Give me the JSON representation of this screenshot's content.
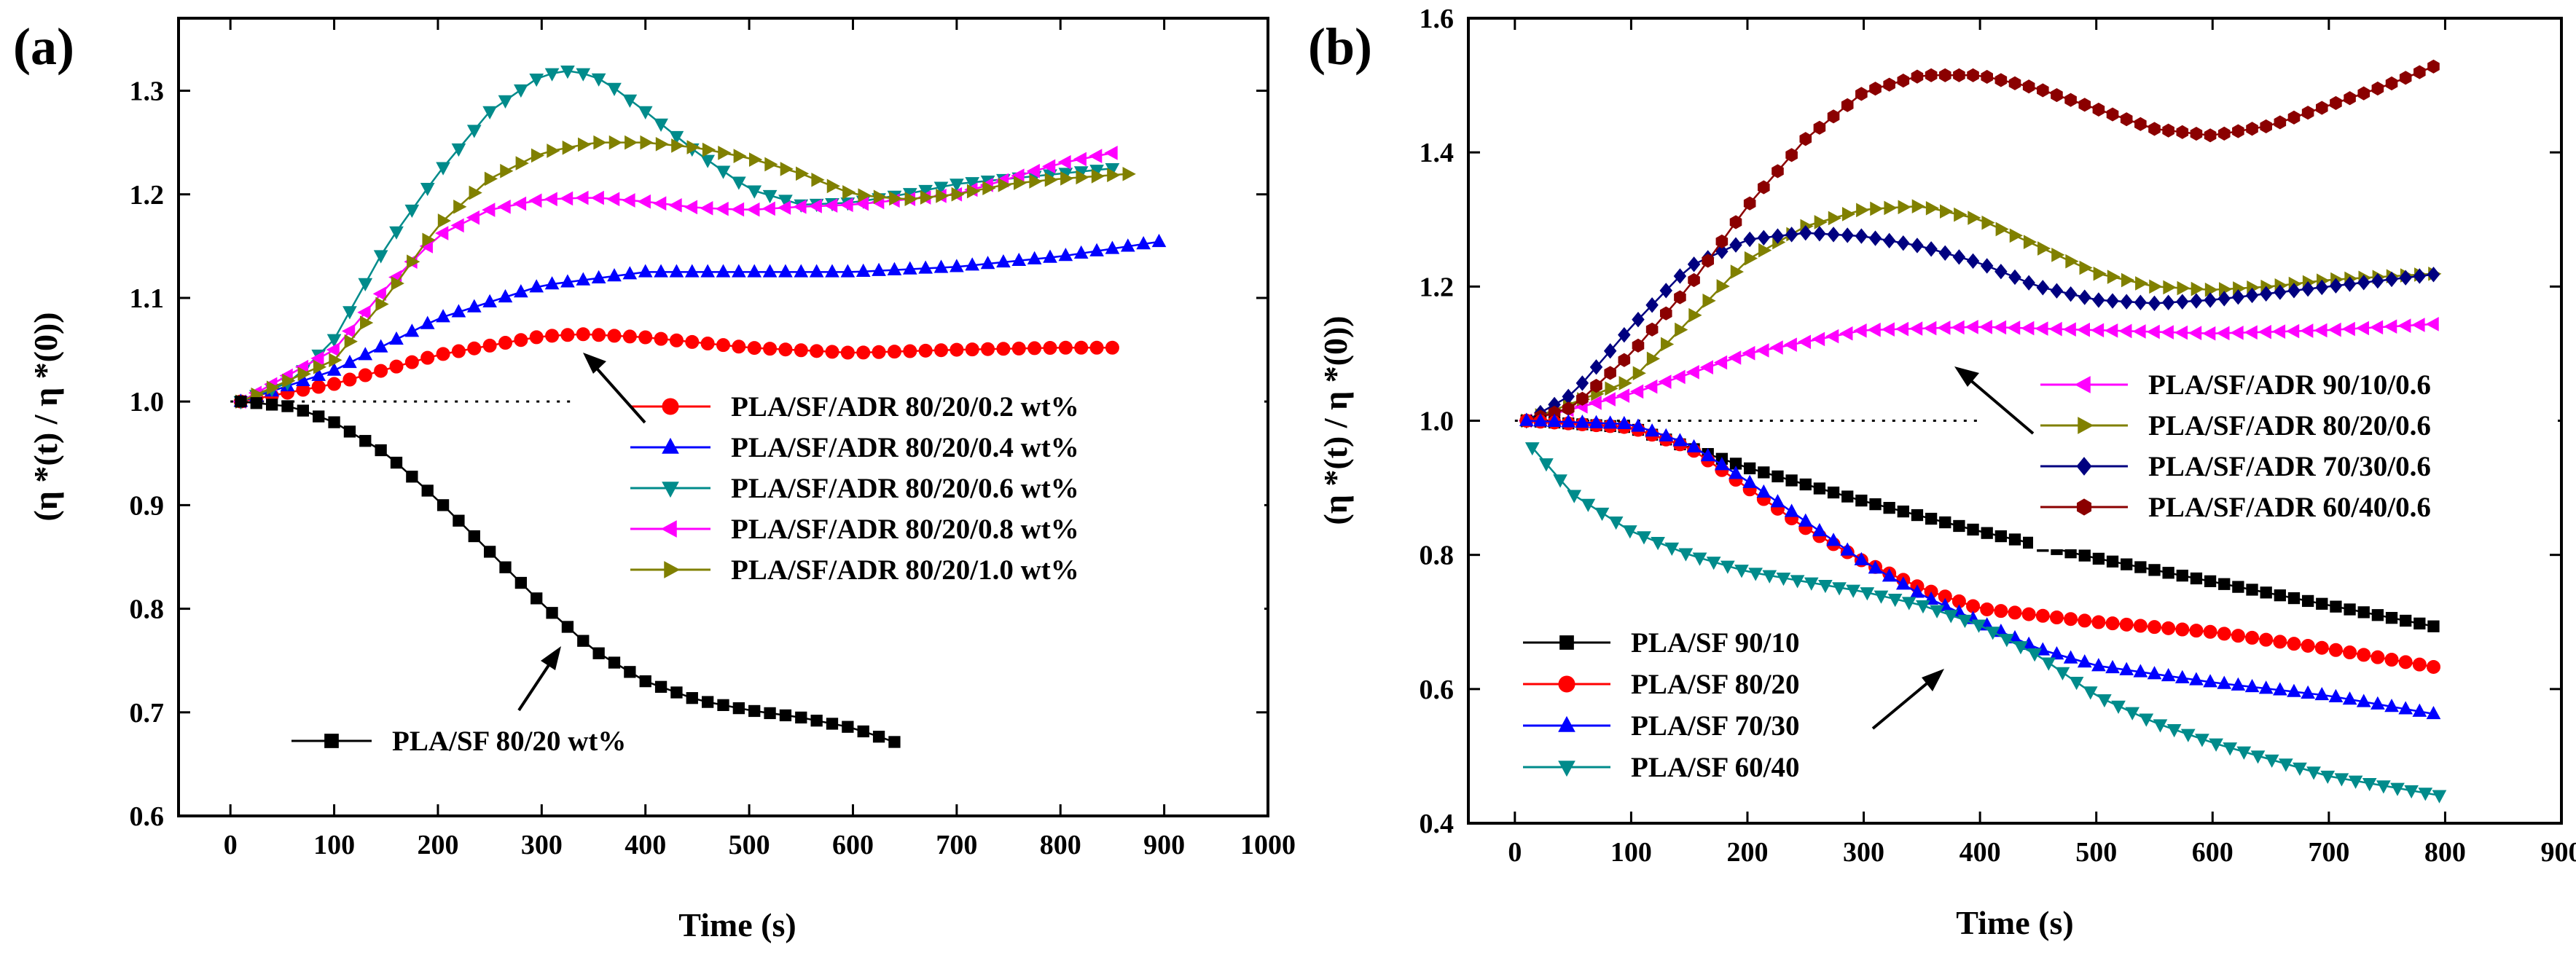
{
  "chart_data": [
    {
      "type": "scatter",
      "panel": "(a)",
      "xlabel": "Time (s)",
      "ylabel": "(η *(t) / η *(0))",
      "xlim": [
        -50,
        1000
      ],
      "ylim": [
        0.6,
        1.37
      ],
      "xticks": [
        "0",
        "100",
        "200",
        "300",
        "400",
        "500",
        "600",
        "700",
        "800",
        "900",
        "1000"
      ],
      "yticks": [
        "0.6",
        "0.7",
        "0.8",
        "0.9",
        "1.0",
        "1.1",
        "1.2",
        "1.3"
      ],
      "xtick_values": [
        0,
        100,
        200,
        300,
        400,
        500,
        600,
        700,
        800,
        900,
        1000
      ],
      "ytick_values": [
        0.6,
        0.7,
        0.8,
        0.9,
        1.0,
        1.1,
        1.2,
        1.3
      ],
      "reference_line": {
        "y": 1.0,
        "x": [
          0,
          330
        ]
      },
      "series": [
        {
          "name": "PLA/SF/ADR 80/20/0.2 wt%",
          "color": "#ff0000",
          "marker": "circle",
          "x_range": [
            10,
            860
          ],
          "x": [
            10,
            100,
            200,
            300,
            340,
            400,
            500,
            600,
            700,
            800,
            860
          ],
          "y": [
            1.0,
            1.017,
            1.045,
            1.063,
            1.065,
            1.062,
            1.052,
            1.047,
            1.05,
            1.052,
            1.052
          ]
        },
        {
          "name": "PLA/SF/ADR 80/20/0.4 wt%",
          "color": "#0000ff",
          "marker": "triangle-up",
          "x_range": [
            10,
            900
          ],
          "x": [
            10,
            100,
            200,
            300,
            400,
            500,
            600,
            700,
            800,
            900
          ],
          "y": [
            1.0,
            1.03,
            1.08,
            1.112,
            1.125,
            1.125,
            1.125,
            1.13,
            1.14,
            1.155
          ]
        },
        {
          "name": "PLA/SF/ADR 80/20/0.6 wt%",
          "color": "#008b8b",
          "marker": "triangle-down",
          "x_range": [
            10,
            850
          ],
          "x": [
            10,
            60,
            100,
            150,
            200,
            250,
            300,
            330,
            360,
            400,
            450,
            500,
            550,
            600,
            650,
            700,
            750,
            800,
            850
          ],
          "y": [
            1.0,
            1.02,
            1.06,
            1.15,
            1.22,
            1.28,
            1.315,
            1.32,
            1.31,
            1.28,
            1.24,
            1.205,
            1.19,
            1.192,
            1.2,
            1.21,
            1.215,
            1.22,
            1.225
          ]
        },
        {
          "name": "PLA/SF/ADR 80/20/0.8 wt%",
          "color": "#ff00ff",
          "marker": "triangle-left",
          "x_range": [
            10,
            850
          ],
          "x": [
            10,
            100,
            150,
            200,
            250,
            300,
            350,
            400,
            450,
            500,
            550,
            600,
            650,
            700,
            750,
            800,
            850
          ],
          "y": [
            1.0,
            1.05,
            1.11,
            1.16,
            1.185,
            1.195,
            1.197,
            1.193,
            1.187,
            1.185,
            1.188,
            1.19,
            1.195,
            1.2,
            1.215,
            1.23,
            1.24
          ]
        },
        {
          "name": "PLA/SF/ADR 80/20/1.0 wt%",
          "color": "#808000",
          "marker": "triangle-right",
          "x_range": [
            10,
            870
          ],
          "x": [
            10,
            100,
            150,
            200,
            250,
            300,
            350,
            400,
            450,
            500,
            550,
            600,
            650,
            700,
            750,
            800,
            870
          ],
          "y": [
            1.0,
            1.04,
            1.1,
            1.17,
            1.215,
            1.24,
            1.25,
            1.25,
            1.245,
            1.235,
            1.22,
            1.2,
            1.195,
            1.2,
            1.21,
            1.215,
            1.22
          ]
        },
        {
          "name": "PLA/SF 80/20 wt%",
          "color": "#000000",
          "marker": "square",
          "x_range": [
            10,
            650
          ],
          "x": [
            10,
            60,
            100,
            150,
            200,
            250,
            300,
            350,
            400,
            450,
            500,
            550,
            600,
            650
          ],
          "y": [
            1.0,
            0.995,
            0.98,
            0.95,
            0.905,
            0.855,
            0.805,
            0.76,
            0.73,
            0.712,
            0.702,
            0.695,
            0.685,
            0.668
          ]
        }
      ]
    },
    {
      "type": "scatter",
      "panel": "(b)",
      "xlabel": "Time (s)",
      "ylabel": "(η *(t) / η *(0))",
      "xlim": [
        -40,
        900
      ],
      "ylim": [
        0.4,
        1.6
      ],
      "xticks": [
        "0",
        "100",
        "200",
        "300",
        "400",
        "500",
        "600",
        "700",
        "800",
        "900"
      ],
      "yticks": [
        "0.4",
        "0.6",
        "0.8",
        "1.0",
        "1.2",
        "1.4",
        "1.6"
      ],
      "xtick_values": [
        0,
        100,
        200,
        300,
        400,
        500,
        600,
        700,
        800,
        900
      ],
      "ytick_values": [
        0.4,
        0.6,
        0.8,
        1.0,
        1.2,
        1.4,
        1.6
      ],
      "reference_line": {
        "y": 1.0,
        "x": [
          0,
          400
        ]
      },
      "series": [
        {
          "name": "PLA/SF/ADR 90/10/0.6",
          "color": "#ff00ff",
          "marker": "triangle-left",
          "x_range": [
            10,
            800
          ],
          "x": [
            10,
            100,
            200,
            300,
            400,
            500,
            600,
            700,
            800
          ],
          "y": [
            1.0,
            1.04,
            1.1,
            1.135,
            1.14,
            1.135,
            1.13,
            1.135,
            1.145
          ]
        },
        {
          "name": "PLA/SF/ADR 80/20/0.6",
          "color": "#808000",
          "marker": "triangle-right",
          "x_range": [
            10,
            800
          ],
          "x": [
            10,
            100,
            150,
            200,
            250,
            300,
            350,
            400,
            450,
            500,
            550,
            600,
            650,
            700,
            750,
            800
          ],
          "y": [
            1.0,
            1.06,
            1.15,
            1.24,
            1.29,
            1.315,
            1.32,
            1.3,
            1.26,
            1.22,
            1.2,
            1.195,
            1.2,
            1.21,
            1.215,
            1.22
          ]
        },
        {
          "name": "PLA/SF/ADR 70/30/0.6",
          "color": "#000080",
          "marker": "diamond",
          "x_range": [
            10,
            800
          ],
          "x": [
            10,
            50,
            100,
            150,
            200,
            250,
            300,
            350,
            400,
            450,
            500,
            550,
            600,
            650,
            700,
            750,
            800
          ],
          "y": [
            1.0,
            1.04,
            1.14,
            1.23,
            1.27,
            1.28,
            1.275,
            1.26,
            1.235,
            1.2,
            1.18,
            1.175,
            1.18,
            1.19,
            1.2,
            1.21,
            1.22
          ]
        },
        {
          "name": "PLA/SF/ADR 60/40/0.6",
          "color": "#8b0000",
          "marker": "hexagon",
          "x_range": [
            10,
            800
          ],
          "x": [
            10,
            50,
            100,
            150,
            200,
            250,
            300,
            350,
            400,
            450,
            500,
            550,
            600,
            650,
            700,
            750,
            800
          ],
          "y": [
            1.0,
            1.02,
            1.1,
            1.2,
            1.32,
            1.42,
            1.49,
            1.515,
            1.515,
            1.495,
            1.465,
            1.435,
            1.425,
            1.44,
            1.47,
            1.5,
            1.535
          ]
        },
        {
          "name": "PLA/SF 90/10",
          "color": "#000000",
          "marker": "square",
          "x_range": [
            10,
            800
          ],
          "x": [
            10,
            100,
            200,
            300,
            400,
            500,
            600,
            700,
            800
          ],
          "y": [
            1.0,
            0.99,
            0.93,
            0.88,
            0.835,
            0.795,
            0.76,
            0.725,
            0.69
          ]
        },
        {
          "name": "PLA/SF 80/20",
          "color": "#ff0000",
          "marker": "circle",
          "x_range": [
            10,
            800
          ],
          "x": [
            10,
            100,
            150,
            200,
            250,
            300,
            350,
            400,
            450,
            500,
            600,
            700,
            800
          ],
          "y": [
            1.0,
            0.99,
            0.96,
            0.9,
            0.84,
            0.79,
            0.75,
            0.72,
            0.71,
            0.7,
            0.685,
            0.66,
            0.63
          ]
        },
        {
          "name": "PLA/SF 70/30",
          "color": "#0000ff",
          "marker": "triangle-up",
          "x_range": [
            10,
            800
          ],
          "x": [
            10,
            100,
            150,
            200,
            250,
            300,
            350,
            400,
            450,
            500,
            600,
            700,
            800
          ],
          "y": [
            1.0,
            0.995,
            0.965,
            0.91,
            0.85,
            0.79,
            0.74,
            0.7,
            0.66,
            0.635,
            0.61,
            0.59,
            0.56
          ]
        },
        {
          "name": "PLA/SF 60/40",
          "color": "#008b8b",
          "marker": "triangle-down",
          "x_range": [
            15,
            800
          ],
          "x": [
            15,
            50,
            100,
            150,
            200,
            250,
            300,
            350,
            400,
            450,
            500,
            550,
            600,
            650,
            700,
            750,
            800
          ],
          "y": [
            0.96,
            0.89,
            0.835,
            0.8,
            0.775,
            0.76,
            0.745,
            0.725,
            0.695,
            0.65,
            0.59,
            0.55,
            0.52,
            0.495,
            0.47,
            0.455,
            0.44
          ]
        }
      ]
    }
  ]
}
